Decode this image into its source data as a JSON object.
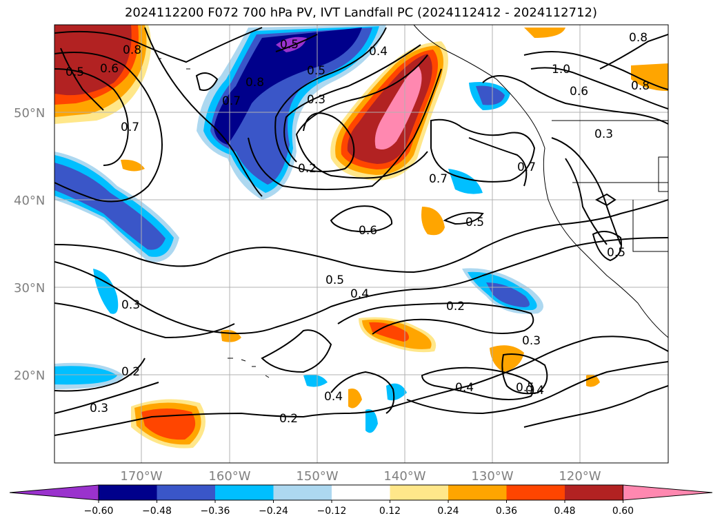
{
  "title": "2024112200 F072 700 hPa PV, IVT Landfall PC (2024112412 - 2024112712)",
  "axes": {
    "lat_labels": [
      "50°N",
      "40°N",
      "30°N",
      "20°N"
    ],
    "lon_labels": [
      "170°W",
      "160°W",
      "150°W",
      "140°W",
      "130°W",
      "120°W"
    ]
  },
  "contour_labels": [
    "0.8",
    "0.5",
    "0.6",
    "0.7",
    "0.7",
    "0.8",
    "0.5",
    "0.4",
    "0.3",
    "0.2",
    "0.7",
    "0.7",
    "0.5",
    "0.6",
    "0.5",
    "0.4",
    "0.3",
    "0.2",
    "0.3",
    "0.2",
    "0.3",
    "0.2",
    "0.4",
    "0.4",
    "0.5",
    "0.4",
    "0.5",
    "0.6",
    "1.0",
    "0.8",
    "0.8",
    "0.3",
    "0.5"
  ],
  "colorbar": {
    "ticks": [
      "−0.60",
      "−0.48",
      "−0.36",
      "−0.24",
      "−0.12",
      "0.12",
      "0.24",
      "0.36",
      "0.48",
      "0.60"
    ],
    "colors": [
      "#9a32cd",
      "#00008b",
      "#3a56c8",
      "#00bfff",
      "#add8f0",
      "#ffffff",
      "#ffe78a",
      "#ffa500",
      "#ff4500",
      "#b22222",
      "#ff88b0"
    ]
  }
}
